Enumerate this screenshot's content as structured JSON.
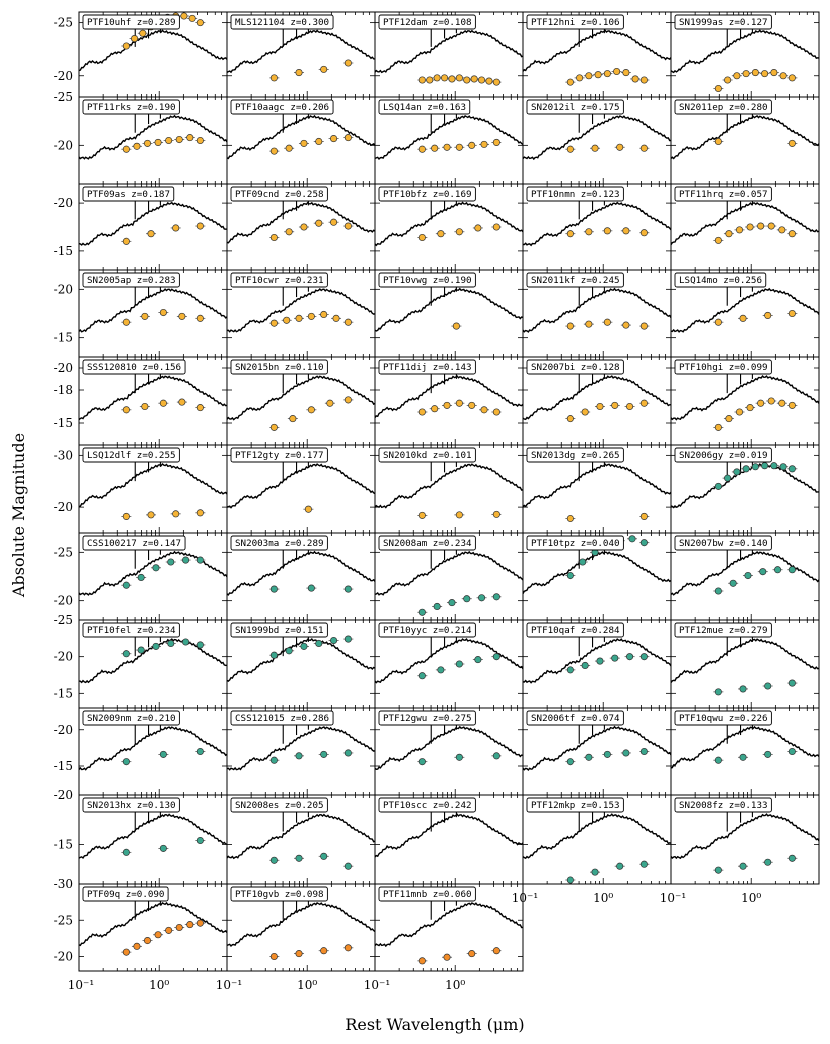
{
  "figure": {
    "xlabel": "Rest Wavelength (μm)",
    "ylabel": "Absolute Magnitude"
  },
  "colors": {
    "orange_marker": "#f5b335",
    "teal_marker": "#3aa58c",
    "deep_orange_marker": "#f28c28",
    "sed_line": "#000000"
  },
  "chart_data": {
    "type": "scatter",
    "title": "",
    "xlabel": "Rest Wavelength (μm)",
    "ylabel": "Absolute Magnitude",
    "xscale": "log",
    "xlim": [
      0.1,
      7
    ],
    "x_tick_labels": [
      "10⁻¹",
      "10⁰"
    ],
    "row_y_ticks": [
      {
        "ylim": [
          -18,
          -26
        ],
        "tick_labels": [
          "-25",
          "-20"
        ]
      },
      {
        "ylim": [
          -16,
          -25
        ],
        "tick_labels": [
          "-25",
          "-20"
        ]
      },
      {
        "ylim": [
          -13,
          -22
        ],
        "tick_labels": [
          "-20",
          "-15"
        ]
      },
      {
        "ylim": [
          -13,
          -22
        ],
        "tick_labels": [
          "-20",
          "-15"
        ]
      },
      {
        "ylim": [
          -13,
          -21
        ],
        "tick_labels": [
          "-20",
          "-18",
          "-15"
        ]
      },
      {
        "ylim": [
          -15,
          -32
        ],
        "tick_labels": [
          "-30",
          "-20"
        ]
      },
      {
        "ylim": [
          -18,
          -27
        ],
        "tick_labels": [
          "-25",
          "-20"
        ]
      },
      {
        "ylim": [
          -13,
          -25
        ],
        "tick_labels": [
          "-25",
          "-20",
          "-15"
        ]
      },
      {
        "ylim": [
          -11,
          -23
        ],
        "tick_labels": [
          "-20",
          "-15"
        ]
      },
      {
        "ylim": [
          -11,
          -20
        ],
        "tick_labels": [
          "-15",
          "-20"
        ]
      },
      {
        "ylim": [
          -18,
          -30
        ],
        "tick_labels": [
          "-30",
          "-25",
          "-20"
        ]
      }
    ],
    "panels": [
      {
        "label": "PTF10uhf z=0.289",
        "marker": "orange",
        "mags": [
          -22.8,
          -23.5,
          -24.0,
          -24.6,
          -25.2,
          -25.5,
          -25.7,
          -25.8,
          -25.4,
          -25.0
        ]
      },
      {
        "label": "MLS121104 z=0.300",
        "marker": "orange",
        "mags": [
          -19.8,
          -20.3,
          -20.6,
          -21.2
        ]
      },
      {
        "label": "PTF12dam z=0.108",
        "marker": "orange",
        "mags": [
          -19.6,
          -19.6,
          -19.8,
          -19.8,
          -19.7,
          -19.8,
          -19.6,
          -19.7,
          -19.6,
          -19.5,
          -19.4
        ]
      },
      {
        "label": "PTF12hni z=0.106",
        "marker": "orange",
        "mags": [
          -19.4,
          -19.8,
          -20.0,
          -20.1,
          -20.2,
          -20.4,
          -20.3,
          -19.7,
          -19.6
        ]
      },
      {
        "label": "SN1999as z=0.127",
        "marker": "orange",
        "mags": [
          -18.8,
          -19.6,
          -20.0,
          -20.2,
          -20.3,
          -20.2,
          -20.3,
          -20.0,
          -19.8
        ]
      },
      {
        "label": "PTF11rks z=0.190",
        "marker": "orange",
        "mags": [
          -19.6,
          -19.9,
          -20.2,
          -20.3,
          -20.5,
          -20.6,
          -20.8,
          -20.5
        ]
      },
      {
        "label": "PTF10aagc z=0.206",
        "marker": "orange",
        "mags": [
          -19.4,
          -19.7,
          -20.2,
          -20.4,
          -20.7,
          -20.8
        ]
      },
      {
        "label": "LSQ14an z=0.163",
        "marker": "orange",
        "mags": [
          -19.6,
          -19.7,
          -19.8,
          -19.8,
          -20.0,
          -20.1,
          -20.3
        ]
      },
      {
        "label": "SN2012il z=0.175",
        "marker": "orange",
        "mags": [
          -19.6,
          -19.7,
          -19.8,
          -19.7
        ]
      },
      {
        "label": "SN2011ep z=0.280",
        "marker": "orange",
        "mags": [
          -20.4,
          -20.2
        ]
      },
      {
        "label": "PTF09as z=0.187",
        "marker": "orange",
        "mags": [
          -16.0,
          -16.8,
          -17.4,
          -17.6
        ]
      },
      {
        "label": "PTF09cnd z=0.258",
        "marker": "orange",
        "mags": [
          -16.4,
          -17.0,
          -17.5,
          -17.9,
          -18.0,
          -17.6
        ]
      },
      {
        "label": "PTF10bfz z=0.169",
        "marker": "orange",
        "mags": [
          -16.4,
          -16.8,
          -17.0,
          -17.4,
          -17.5
        ]
      },
      {
        "label": "PTF10nmn z=0.123",
        "marker": "orange",
        "mags": [
          -16.8,
          -17.0,
          -17.1,
          -17.1,
          -16.9
        ]
      },
      {
        "label": "PTF11hrq z=0.057",
        "marker": "orange",
        "mags": [
          -16.1,
          -16.8,
          -17.2,
          -17.5,
          -17.6,
          -17.6,
          -17.2,
          -16.8
        ]
      },
      {
        "label": "SN2005ap z=0.283",
        "marker": "orange",
        "mags": [
          -16.6,
          -17.2,
          -17.6,
          -17.2,
          -17.0
        ]
      },
      {
        "label": "PTF10cwr z=0.231",
        "marker": "orange",
        "mags": [
          -16.5,
          -16.8,
          -17.0,
          -17.2,
          -17.4,
          -17.0,
          -16.6
        ]
      },
      {
        "label": "PTF10vwg z=0.190",
        "marker": "orange",
        "mags": [
          -16.2
        ]
      },
      {
        "label": "SN2011kf z=0.245",
        "marker": "orange",
        "mags": [
          -16.2,
          -16.4,
          -16.6,
          -16.3,
          -16.2
        ]
      },
      {
        "label": "LSQ14mo z=0.256",
        "marker": "orange",
        "mags": [
          -16.6,
          -17.0,
          -17.3,
          -17.5
        ]
      },
      {
        "label": "SSS120810 z=0.156",
        "marker": "orange",
        "mags": [
          -16.2,
          -16.5,
          -16.8,
          -16.9,
          -16.4
        ]
      },
      {
        "label": "SN2015bn z=0.110",
        "marker": "orange",
        "mags": [
          -14.6,
          -15.4,
          -16.2,
          -16.8,
          -17.1
        ]
      },
      {
        "label": "PTF11dij z=0.143",
        "marker": "orange",
        "mags": [
          -16.0,
          -16.3,
          -16.6,
          -16.8,
          -16.6,
          -16.2,
          -16.0
        ]
      },
      {
        "label": "SN2007bi z=0.128",
        "marker": "orange",
        "mags": [
          -15.4,
          -16.0,
          -16.5,
          -16.6,
          -16.5,
          -16.8
        ]
      },
      {
        "label": "PTF10hgi z=0.099",
        "marker": "orange",
        "mags": [
          -14.6,
          -15.4,
          -16.0,
          -16.4,
          -16.8,
          -17.0,
          -16.8,
          -16.6
        ]
      },
      {
        "label": "LSQ12dlf z=0.255",
        "marker": "orange",
        "mags": [
          -18.2,
          -18.5,
          -18.7,
          -18.9
        ]
      },
      {
        "label": "PTF12gty z=0.177",
        "marker": "orange",
        "mags": [
          -19.6
        ]
      },
      {
        "label": "SN2010kd z=0.101",
        "marker": "orange",
        "mags": [
          -18.4,
          -18.5,
          -18.6
        ]
      },
      {
        "label": "SN2013dg z=0.265",
        "marker": "orange",
        "mags": [
          -17.8,
          -18.2
        ]
      },
      {
        "label": "SN2006gy z=0.019",
        "marker": "teal",
        "mags": [
          -24.0,
          -25.6,
          -26.8,
          -27.4,
          -27.8,
          -28.0,
          -28.0,
          -27.8,
          -27.4
        ]
      },
      {
        "label": "CSS100217 z=0.147",
        "marker": "teal",
        "mags": [
          -21.6,
          -22.4,
          -23.4,
          -24.0,
          -24.2,
          -24.2
        ]
      },
      {
        "label": "SN2003ma z=0.289",
        "marker": "teal",
        "mags": [
          -21.2,
          -21.3,
          -21.2
        ]
      },
      {
        "label": "SN2008am z=0.234",
        "marker": "teal",
        "mags": [
          -18.8,
          -19.4,
          -19.8,
          -20.2,
          -20.3,
          -20.4
        ]
      },
      {
        "label": "PTF10tpz z=0.040",
        "marker": "teal",
        "mags": [
          -22.6,
          -24.0,
          -25.0,
          -25.8,
          -26.2,
          -26.4,
          -26.0
        ]
      },
      {
        "label": "SN2007bw z=0.140",
        "marker": "teal",
        "mags": [
          -21.0,
          -21.8,
          -22.6,
          -23.0,
          -23.2,
          -23.2
        ]
      },
      {
        "label": "PTF10fel z=0.234",
        "marker": "teal",
        "mags": [
          -20.4,
          -20.9,
          -21.4,
          -21.8,
          -22.0,
          -21.6
        ]
      },
      {
        "label": "SN1999bd z=0.151",
        "marker": "teal",
        "mags": [
          -20.2,
          -20.8,
          -21.4,
          -21.8,
          -22.2,
          -22.4
        ]
      },
      {
        "label": "PTF10yyc z=0.214",
        "marker": "teal",
        "mags": [
          -17.4,
          -18.2,
          -19.0,
          -19.6,
          -20.0
        ]
      },
      {
        "label": "PTF10qaf z=0.284",
        "marker": "teal",
        "mags": [
          -18.2,
          -18.8,
          -19.4,
          -19.8,
          -20.0,
          -20.0
        ]
      },
      {
        "label": "PTF12mue z=0.279",
        "marker": "teal",
        "mags": [
          -15.2,
          -15.6,
          -16.0,
          -16.4
        ]
      },
      {
        "label": "SN2009nm z=0.210",
        "marker": "teal",
        "mags": [
          -15.6,
          -16.6,
          -17.0
        ]
      },
      {
        "label": "CSS121015 z=0.286",
        "marker": "teal",
        "mags": [
          -15.8,
          -16.4,
          -16.6,
          -16.8
        ]
      },
      {
        "label": "PTF12gwu z=0.275",
        "marker": "teal",
        "mags": [
          -15.6,
          -16.2,
          -16.4
        ]
      },
      {
        "label": "SN2006tf z=0.074",
        "marker": "teal",
        "mags": [
          -15.6,
          -16.2,
          -16.6,
          -16.8,
          -17.0
        ]
      },
      {
        "label": "PTF10qwu z=0.226",
        "marker": "teal",
        "mags": [
          -15.8,
          -16.2,
          -16.6,
          -17.0
        ]
      },
      {
        "label": "SN2013hx z=0.130",
        "marker": "teal",
        "mags": [
          -14.2,
          -14.6,
          -15.4
        ]
      },
      {
        "label": "SN2008es z=0.205",
        "marker": "teal",
        "mags": [
          -13.4,
          -13.6,
          -13.8,
          -12.8
        ]
      },
      {
        "label": "PTF10scc z=0.242",
        "marker": "teal",
        "mags": []
      },
      {
        "label": "PTF12mkp z=0.153",
        "marker": "teal",
        "mags": [
          -11.2,
          -12.2,
          -12.8,
          -13.0
        ]
      },
      {
        "label": "SN2008fz z=0.133",
        "marker": "teal",
        "mags": [
          -12.4,
          -12.8,
          -13.2,
          -13.6
        ]
      },
      {
        "label": "PTF09q z=0.090",
        "marker": "deep_orange",
        "mags": [
          -20.6,
          -21.4,
          -22.2,
          -23.0,
          -23.6,
          -24.0,
          -24.4,
          -24.6
        ]
      },
      {
        "label": "PTF10gvb z=0.098",
        "marker": "deep_orange",
        "mags": [
          -20.0,
          -20.4,
          -20.8,
          -21.2
        ]
      },
      {
        "label": "PTF11mnb z=0.060",
        "marker": "deep_orange",
        "mags": [
          -19.4,
          -19.9,
          -20.4,
          -20.8
        ]
      }
    ]
  }
}
